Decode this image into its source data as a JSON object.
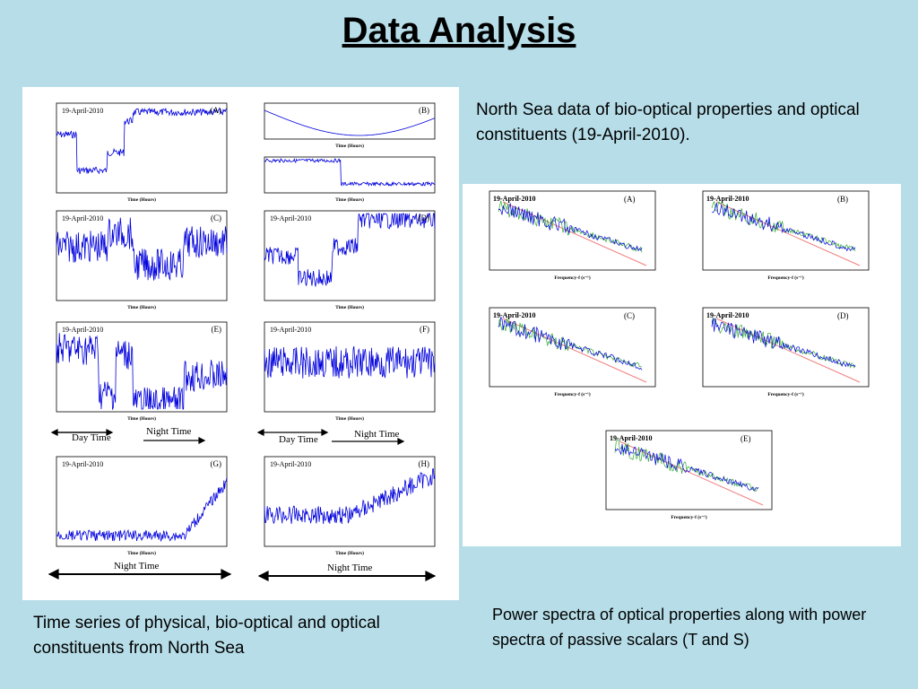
{
  "title": "Data Analysis",
  "desc_top": "North Sea data of bio-optical properties and optical constituents (19-April-2010).",
  "caption_left": "Time series of physical, bio-optical and optical constituents from North Sea",
  "caption_right": "Power spectra of optical properties along with power spectra of passive scalars (T and S)",
  "date_label": "19-April-2010",
  "day_time": "Day Time",
  "night_time": "Night Time",
  "panel_letters": [
    "(A)",
    "(B)",
    "(C)",
    "(D)",
    "(E)",
    "(F)",
    "(G)",
    "(H)"
  ],
  "time_xlabel": "Time (Hours)",
  "freq_xlabel": "Frequency-f (s⁻¹)",
  "colors": {
    "background": "#b6dde8",
    "series_blue": "#0000dd",
    "fit_red": "#f08080",
    "series_green": "#33aa33"
  }
}
